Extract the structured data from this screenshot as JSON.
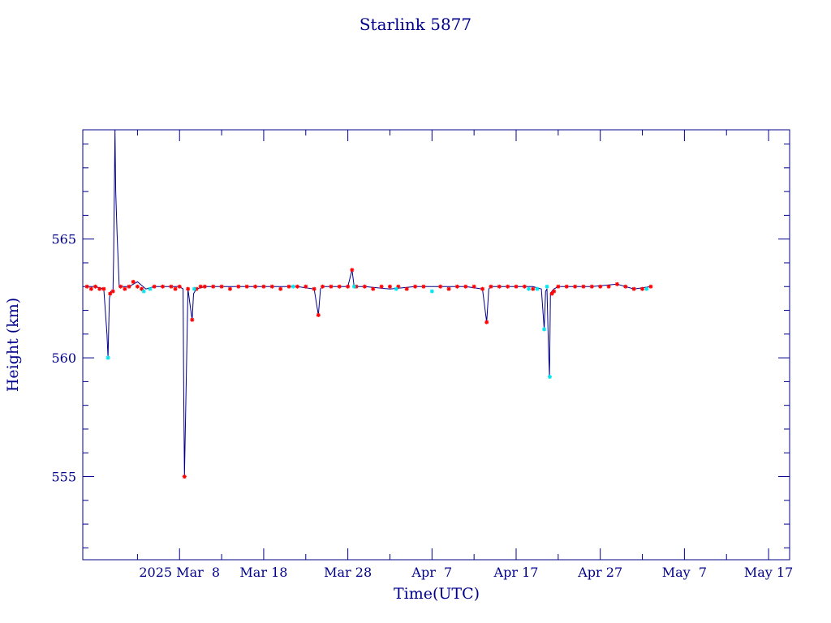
{
  "chart_data": {
    "type": "line",
    "title": "Starlink 5877",
    "xlabel": "Time(UTC)",
    "ylabel": "Height (km)",
    "xlim": [
      "2025-02-24T12:00",
      "2025-05-19T12:00"
    ],
    "ylim": [
      551.5,
      569.6
    ],
    "x_tick_labels": [
      "2025 Mar  8",
      "Mar 18",
      "Mar 28",
      "Apr  7",
      "Apr 17",
      "Apr 27",
      "May  7",
      "May 17"
    ],
    "x_tick_dates": [
      "2025-03-08",
      "2025-03-18",
      "2025-03-28",
      "2025-04-07",
      "2025-04-17",
      "2025-04-27",
      "2025-05-07",
      "2025-05-17"
    ],
    "y_ticks": [
      555,
      560,
      565
    ],
    "grid": false,
    "colors": {
      "axis": "#00008b",
      "line": "#00008b",
      "marker_red": "#ff0000",
      "marker_cyan": "#00e5ee"
    },
    "series": [
      {
        "style": "line",
        "x": [
          "2025-02-25T00:00",
          "2025-02-26T00:00",
          "2025-02-27T00:00",
          "2025-02-27T09:00",
          "2025-02-27T12:00",
          "2025-02-27T16:00",
          "2025-02-27T20:00",
          "2025-02-28T02:00",
          "2025-02-28T04:00",
          "2025-02-28T08:00",
          "2025-02-28T10:00",
          "2025-02-28T14:00",
          "2025-02-28T20:00",
          "2025-03-01T00:00",
          "2025-03-02T00:00",
          "2025-03-03T00:00",
          "2025-03-04T00:00",
          "2025-03-05T00:00",
          "2025-03-06T00:00",
          "2025-03-07T00:00",
          "2025-03-08T00:00",
          "2025-03-08T10:00",
          "2025-03-08T12:00",
          "2025-03-08T14:00",
          "2025-03-09T00:00",
          "2025-03-09T08:00",
          "2025-03-09T12:00",
          "2025-03-09T16:00",
          "2025-03-10T00:00",
          "2025-03-11T00:00",
          "2025-03-13T00:00",
          "2025-03-16T00:00",
          "2025-03-19T00:00",
          "2025-03-22T00:00",
          "2025-03-24T00:00",
          "2025-03-24T12:00",
          "2025-03-24T18:00",
          "2025-03-25T00:00",
          "2025-03-26T00:00",
          "2025-03-27T00:00",
          "2025-03-28T00:00",
          "2025-03-28T12:00",
          "2025-03-28T18:00",
          "2025-03-29T00:00",
          "2025-03-30T00:00",
          "2025-04-02T00:00",
          "2025-04-05T00:00",
          "2025-04-08T00:00",
          "2025-04-11T00:00",
          "2025-04-13T00:00",
          "2025-04-13T12:00",
          "2025-04-13T18:00",
          "2025-04-14T00:00",
          "2025-04-15T00:00",
          "2025-04-17T00:00",
          "2025-04-19T00:00",
          "2025-04-20T00:00",
          "2025-04-20T08:00",
          "2025-04-20T12:00",
          "2025-04-20T16:00",
          "2025-04-20T20:00",
          "2025-04-20T23:00",
          "2025-04-21T02:00",
          "2025-04-21T06:00",
          "2025-04-21T12:00",
          "2025-04-22T00:00",
          "2025-04-23T00:00",
          "2025-04-26T00:00",
          "2025-04-29T00:00",
          "2025-05-01T00:00",
          "2025-05-03T00:00"
        ],
        "y": [
          563.0,
          563.0,
          562.9,
          561.0,
          560.0,
          562.5,
          562.8,
          562.8,
          564.2,
          569.6,
          567.0,
          565.2,
          563.0,
          563.0,
          563.0,
          563.2,
          562.9,
          563.0,
          563.0,
          563.0,
          563.0,
          562.9,
          558.5,
          555.0,
          562.9,
          562.0,
          561.6,
          562.7,
          562.9,
          563.0,
          563.0,
          563.0,
          563.0,
          563.0,
          562.9,
          561.8,
          562.9,
          563.0,
          563.0,
          563.0,
          563.0,
          563.7,
          563.0,
          563.0,
          563.0,
          562.9,
          563.0,
          563.0,
          563.0,
          562.9,
          561.5,
          562.9,
          563.0,
          563.0,
          563.0,
          563.0,
          562.9,
          561.2,
          562.8,
          562.9,
          560.5,
          559.2,
          562.7,
          562.8,
          562.9,
          563.0,
          563.0,
          563.0,
          563.1,
          562.9,
          563.0
        ]
      },
      {
        "style": "markers",
        "color": "red",
        "x": [
          "2025-02-25T00:00",
          "2025-02-25T12:00",
          "2025-02-26T00:00",
          "2025-02-26T12:00",
          "2025-02-27T00:00",
          "2025-02-27T18:00",
          "2025-02-28T02:00",
          "2025-03-01T00:00",
          "2025-03-01T12:00",
          "2025-03-02T00:00",
          "2025-03-02T12:00",
          "2025-03-03T00:00",
          "2025-03-03T12:00",
          "2025-03-05T00:00",
          "2025-03-06T00:00",
          "2025-03-07T00:00",
          "2025-03-07T12:00",
          "2025-03-08T00:00",
          "2025-03-08T14:00",
          "2025-03-09T00:00",
          "2025-03-09T12:00",
          "2025-03-10T00:00",
          "2025-03-10T12:00",
          "2025-03-11T00:00",
          "2025-03-12T00:00",
          "2025-03-13T00:00",
          "2025-03-14T00:00",
          "2025-03-15T00:00",
          "2025-03-16T00:00",
          "2025-03-17T00:00",
          "2025-03-18T00:00",
          "2025-03-19T00:00",
          "2025-03-20T00:00",
          "2025-03-21T00:00",
          "2025-03-22T00:00",
          "2025-03-23T00:00",
          "2025-03-24T00:00",
          "2025-03-24T12:00",
          "2025-03-25T00:00",
          "2025-03-26T00:00",
          "2025-03-27T00:00",
          "2025-03-28T00:00",
          "2025-03-28T12:00",
          "2025-03-29T00:00",
          "2025-03-30T00:00",
          "2025-03-31T00:00",
          "2025-04-01T00:00",
          "2025-04-02T00:00",
          "2025-04-03T00:00",
          "2025-04-04T00:00",
          "2025-04-05T00:00",
          "2025-04-06T00:00",
          "2025-04-08T00:00",
          "2025-04-09T00:00",
          "2025-04-10T00:00",
          "2025-04-11T00:00",
          "2025-04-12T00:00",
          "2025-04-13T00:00",
          "2025-04-13T12:00",
          "2025-04-14T00:00",
          "2025-04-15T00:00",
          "2025-04-16T00:00",
          "2025-04-17T00:00",
          "2025-04-18T00:00",
          "2025-04-19T00:00",
          "2025-04-21T06:00",
          "2025-04-21T12:00",
          "2025-04-22T00:00",
          "2025-04-23T00:00",
          "2025-04-24T00:00",
          "2025-04-25T00:00",
          "2025-04-26T00:00",
          "2025-04-27T00:00",
          "2025-04-28T00:00",
          "2025-04-29T00:00",
          "2025-04-30T00:00",
          "2025-05-01T00:00",
          "2025-05-02T00:00",
          "2025-05-03T00:00"
        ],
        "y": [
          563.0,
          562.9,
          563.0,
          562.9,
          562.9,
          562.7,
          562.8,
          563.0,
          562.9,
          563.0,
          563.2,
          563.0,
          562.9,
          563.0,
          563.0,
          563.0,
          562.9,
          563.0,
          555.0,
          562.9,
          561.6,
          562.9,
          563.0,
          563.0,
          563.0,
          563.0,
          562.9,
          563.0,
          563.0,
          563.0,
          563.0,
          563.0,
          562.9,
          563.0,
          563.0,
          563.0,
          562.9,
          561.8,
          563.0,
          563.0,
          563.0,
          563.0,
          563.7,
          563.0,
          563.0,
          562.9,
          563.0,
          563.0,
          563.0,
          562.9,
          563.0,
          563.0,
          563.0,
          562.9,
          563.0,
          563.0,
          563.0,
          562.9,
          561.5,
          563.0,
          563.0,
          563.0,
          563.0,
          563.0,
          562.9,
          562.7,
          562.8,
          563.0,
          563.0,
          563.0,
          563.0,
          563.0,
          563.0,
          563.0,
          563.1,
          563.0,
          562.9,
          562.9,
          563.0
        ]
      },
      {
        "style": "markers",
        "color": "cyan",
        "x": [
          "2025-02-27T12:00",
          "2025-03-03T18:00",
          "2025-03-04T12:00",
          "2025-03-09T18:00",
          "2025-03-21T12:00",
          "2025-03-28T18:00",
          "2025-04-02T18:00",
          "2025-04-07T00:00",
          "2025-04-18T12:00",
          "2025-04-19T12:00",
          "2025-04-20T08:00",
          "2025-04-20T16:00",
          "2025-04-21T00:00",
          "2025-05-02T12:00"
        ],
        "y": [
          560.0,
          562.8,
          562.9,
          562.9,
          563.0,
          563.0,
          562.9,
          562.8,
          562.9,
          562.9,
          561.2,
          563.0,
          559.2,
          562.9
        ]
      }
    ]
  }
}
